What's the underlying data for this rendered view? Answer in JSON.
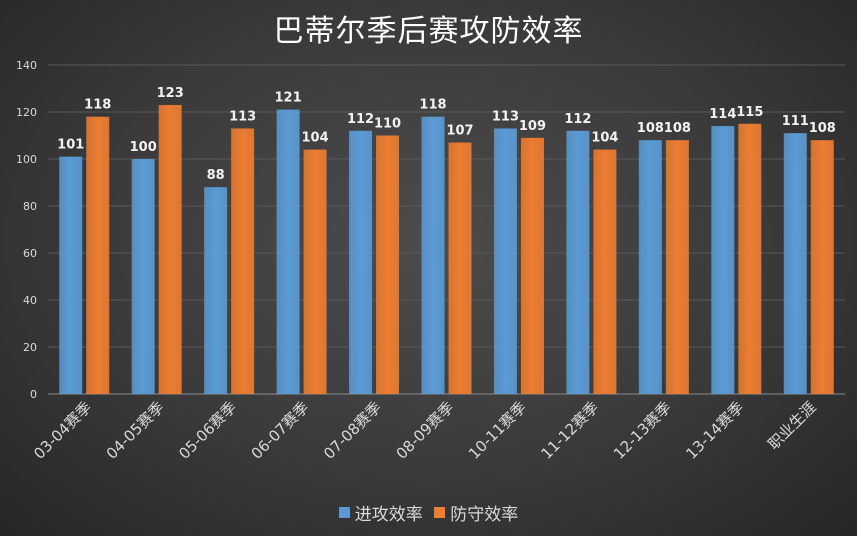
{
  "chart_data": {
    "type": "bar",
    "title": "巴蒂尔季后赛攻防效率",
    "categories": [
      "03-04赛季",
      "04-05赛季",
      "05-06赛季",
      "06-07赛季",
      "07-08赛季",
      "08-09赛季",
      "10-11赛季",
      "11-12赛季",
      "12-13赛季",
      "13-14赛季",
      "职业生涯"
    ],
    "series": [
      {
        "name": "进攻效率",
        "color": "#5b9bd5",
        "values": [
          101,
          100,
          88,
          121,
          112,
          118,
          113,
          112,
          108,
          114,
          111
        ]
      },
      {
        "name": "防守效率",
        "color": "#ed7d31",
        "values": [
          118,
          123,
          113,
          104,
          110,
          107,
          109,
          104,
          108,
          115,
          108
        ]
      }
    ],
    "ylim": [
      0,
      140
    ],
    "yticks": [
      0,
      20,
      40,
      60,
      80,
      100,
      120,
      140
    ],
    "grid": true,
    "legend": "bottom",
    "xlabel": "",
    "ylabel": ""
  }
}
